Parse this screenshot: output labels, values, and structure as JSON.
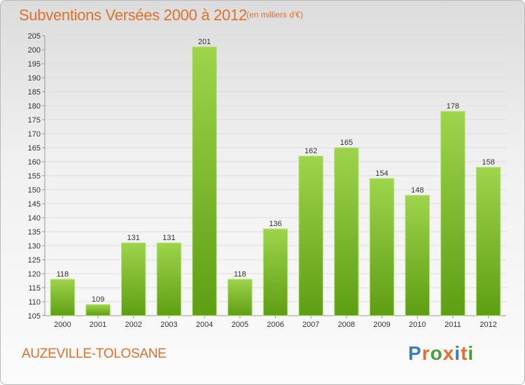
{
  "header": {
    "title": "Subventions Versées 2000 à 2012",
    "subtitle": "(en milliers d'€)"
  },
  "footer": {
    "commune": "AUZEVILLE-TOLOSANE",
    "logo_text": "Proxiti",
    "logo_colors": [
      "#3a7fc4",
      "#e0702a",
      "#4a9e3a",
      "#e0702a",
      "#3a7fc4",
      "#e0702a",
      "#4a9e3a"
    ]
  },
  "colors": {
    "bar_top": "#9ed44c",
    "bar_bottom": "#5e9e14",
    "bar_edge": "#b8e27a",
    "grid": "#dddddd",
    "axis": "#999999"
  },
  "chart_data": {
    "type": "bar",
    "categories": [
      "2000",
      "2001",
      "2002",
      "2003",
      "2004",
      "2005",
      "2006",
      "2007",
      "2008",
      "2009",
      "2010",
      "2011",
      "2012"
    ],
    "values": [
      118,
      109,
      131,
      131,
      201,
      118,
      136,
      162,
      165,
      154,
      148,
      178,
      158
    ],
    "ylim": [
      105,
      205
    ],
    "yticks": [
      105,
      110,
      115,
      120,
      125,
      130,
      135,
      140,
      145,
      150,
      155,
      160,
      165,
      170,
      175,
      180,
      185,
      190,
      195,
      200,
      205
    ],
    "grid": true,
    "legend": "none",
    "xlabel": "",
    "ylabel": ""
  }
}
